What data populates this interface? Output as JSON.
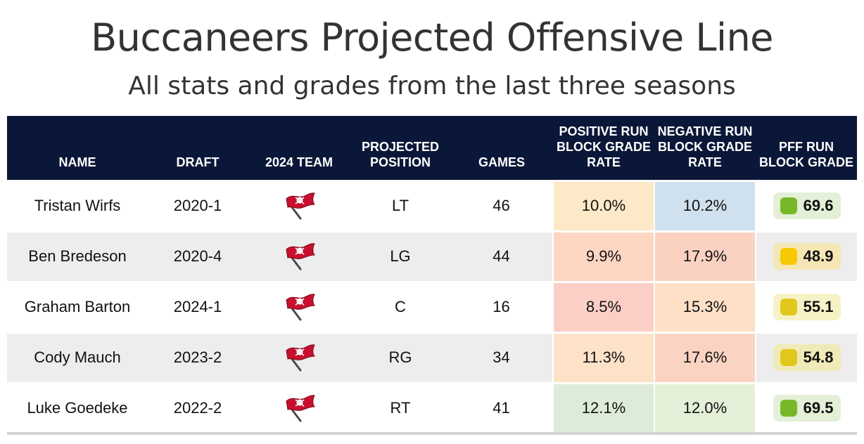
{
  "title": "Buccaneers Projected Offensive Line",
  "subtitle": "All stats and grades from the last three seasons",
  "chart_data": {
    "type": "table",
    "columns": [
      "NAME",
      "DRAFT",
      "2024 TEAM",
      "PROJECTED POSITION",
      "GAMES",
      "POSITIVE RUN BLOCK GRADE RATE",
      "NEGATIVE RUN BLOCK GRADE RATE",
      "PFF RUN BLOCK GRADE"
    ],
    "rows": [
      {
        "name": "Tristan Wirfs",
        "draft": "2020-1",
        "team_icon": "buccaneers-flag-icon",
        "position": "LT",
        "games": "46",
        "positive": "10.0%",
        "negative": "10.2%",
        "grade": "69.6"
      },
      {
        "name": "Ben Bredeson",
        "draft": "2020-4",
        "team_icon": "buccaneers-flag-icon",
        "position": "LG",
        "games": "44",
        "positive": "9.9%",
        "negative": "17.9%",
        "grade": "48.9"
      },
      {
        "name": "Graham Barton",
        "draft": "2024-1",
        "team_icon": "buccaneers-flag-icon",
        "position": "C",
        "games": "16",
        "positive": "8.5%",
        "negative": "15.3%",
        "grade": "55.1"
      },
      {
        "name": "Cody Mauch",
        "draft": "2023-2",
        "team_icon": "buccaneers-flag-icon",
        "position": "RG",
        "games": "34",
        "positive": "11.3%",
        "negative": "17.6%",
        "grade": "54.8"
      },
      {
        "name": "Luke Goedeke",
        "draft": "2022-2",
        "team_icon": "buccaneers-flag-icon",
        "position": "RT",
        "games": "41",
        "positive": "12.1%",
        "negative": "12.0%",
        "grade": "69.5"
      }
    ]
  },
  "colors": {
    "header_bg": "#0b1738",
    "positive_cells": [
      "#fde9c8",
      "#fcd6c2",
      "#fbcfc6",
      "#fde2c8",
      "#dcecd9"
    ],
    "negative_cells": [
      "#cfe1ee",
      "#fbd2c2",
      "#fde0c6",
      "#fbd3c2",
      "#e4efd8"
    ],
    "grade_dots": [
      "#78b828",
      "#f7c902",
      "#e0c81c",
      "#e0c81c",
      "#78b828"
    ],
    "grade_pills": [
      "#e3efd6",
      "#f4e7b4",
      "#f7f2c6",
      "#f0eab8",
      "#e3efd6"
    ]
  }
}
